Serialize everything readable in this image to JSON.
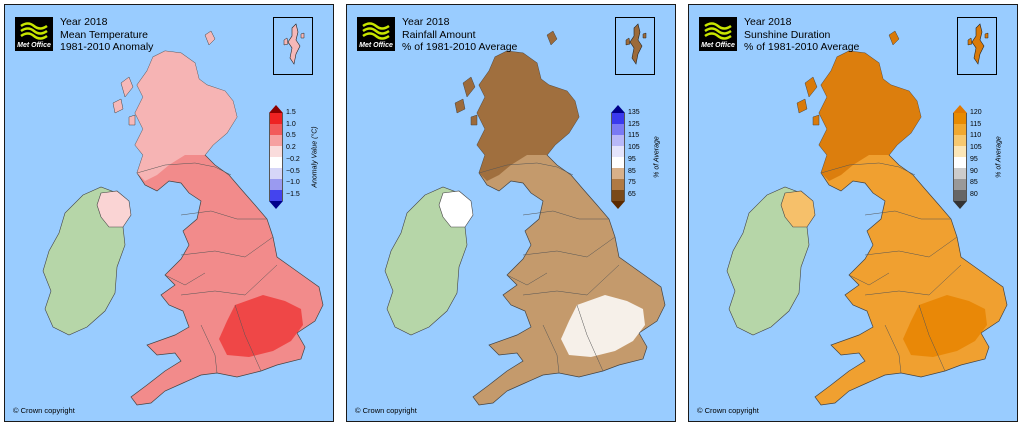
{
  "logo_label": "Met Office",
  "copyright": "© Crown copyright",
  "colors": {
    "sea": "#99ccff",
    "ireland": "#b6d6a8",
    "border": "#444444"
  },
  "panels": [
    {
      "title_line1": "Year 2018",
      "title_line2": "Mean Temperature",
      "title_line3": "1981-2010 Anomaly",
      "legend_axis": "Anomaly Value (°C)",
      "legend_ticks": [
        "1.5",
        "1.0",
        "0.5",
        "0.2",
        "−0.2",
        "−0.5",
        "−1.0",
        "−1.5"
      ],
      "legend_colors": [
        "#ee2222",
        "#f25a5a",
        "#f6a0a0",
        "#fadcdc",
        "#ffffff",
        "#d6d6f8",
        "#9a9af0",
        "#4444ee"
      ],
      "tip_top": "#8b0000",
      "tip_bottom": "#00008b",
      "fill_main": "#f28b8b",
      "fill_north": "#f6b8b8",
      "fill_hot": "#ee3b3b",
      "fill_ni": "#fad4d4"
    },
    {
      "title_line1": "Year 2018",
      "title_line2": "Rainfall Amount",
      "title_line3": "% of 1981-2010 Average",
      "legend_axis": "% of Average",
      "legend_ticks": [
        "135",
        "125",
        "115",
        "105",
        "95",
        "85",
        "75",
        "65"
      ],
      "legend_colors": [
        "#3a3aee",
        "#7a7af4",
        "#b8b8f8",
        "#e4e4fc",
        "#ffffff",
        "#d8b089",
        "#b07a44",
        "#7a4a1a"
      ],
      "tip_top": "#00008b",
      "tip_bottom": "#5a2a00",
      "fill_main": "#c49a6c",
      "fill_north": "#9c6a3a",
      "fill_hot": "#ffffff",
      "fill_ni": "#ffffff"
    },
    {
      "title_line1": "Year 2018",
      "title_line2": "Sunshine Duration",
      "title_line3": "% of 1981-2010 Average",
      "legend_axis": "% of Average",
      "legend_ticks": [
        "120",
        "115",
        "110",
        "105",
        "95",
        "90",
        "85",
        "80"
      ],
      "legend_colors": [
        "#e88a00",
        "#f0a830",
        "#f6c870",
        "#fbe6b8",
        "#ffffff",
        "#cccccc",
        "#999999",
        "#666666"
      ],
      "tip_top": "#e07800",
      "tip_bottom": "#333333",
      "fill_main": "#f0a030",
      "fill_north": "#d97a0a",
      "fill_hot": "#e88400",
      "fill_ni": "#f6c06a"
    }
  ]
}
